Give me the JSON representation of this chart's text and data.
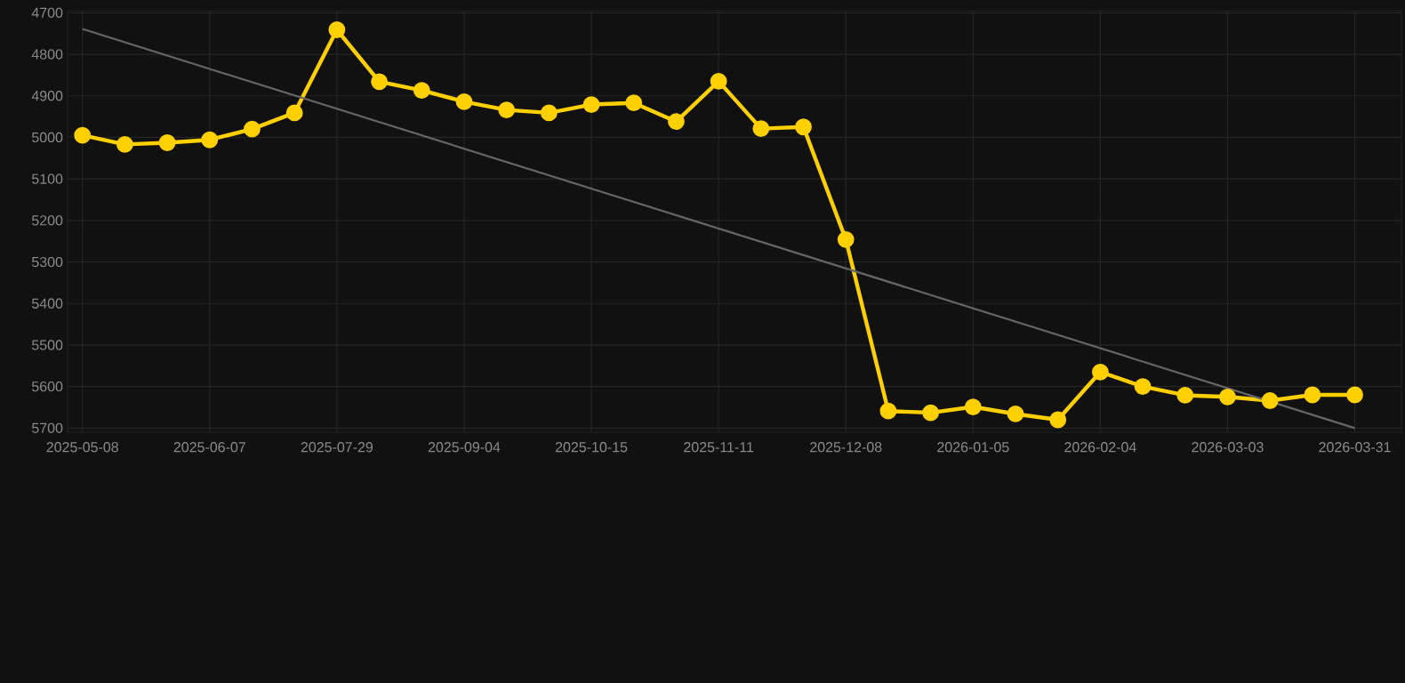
{
  "chart_data": {
    "type": "line",
    "categories": [
      "2025-05-08",
      null,
      null,
      "2025-06-07",
      null,
      null,
      "2025-07-29",
      null,
      null,
      "2025-09-04",
      null,
      null,
      "2025-10-15",
      null,
      null,
      "2025-11-11",
      null,
      null,
      "2025-12-08",
      null,
      null,
      "2026-01-05",
      null,
      null,
      "2026-02-04",
      null,
      null,
      "2026-03-03",
      null,
      null,
      "2026-03-31"
    ],
    "series": [
      {
        "color": "#ffd000",
        "marker": "circle",
        "values": [
          4995,
          5017,
          5013,
          5006,
          4980,
          4941,
          4741,
          4866,
          4887,
          4914,
          4934,
          4941,
          4921,
          4917,
          4962,
          4865,
          4979,
          4975,
          5246,
          5659,
          5663,
          5649,
          5666,
          5680,
          5565,
          5600,
          5621,
          5625,
          5634,
          5620,
          5620
        ]
      },
      {
        "type": "line",
        "color": "#666666",
        "marker": "none",
        "values": [
          4739,
          null,
          null,
          null,
          null,
          null,
          null,
          null,
          null,
          null,
          null,
          null,
          null,
          null,
          null,
          null,
          null,
          null,
          null,
          null,
          null,
          null,
          null,
          null,
          null,
          null,
          null,
          null,
          null,
          null,
          5700
        ]
      }
    ],
    "ylim": [
      5710,
      4695
    ],
    "yticks": [
      4700,
      4800,
      4900,
      5000,
      5100,
      5200,
      5300,
      5400,
      5500,
      5600,
      5700
    ],
    "grid": true
  }
}
